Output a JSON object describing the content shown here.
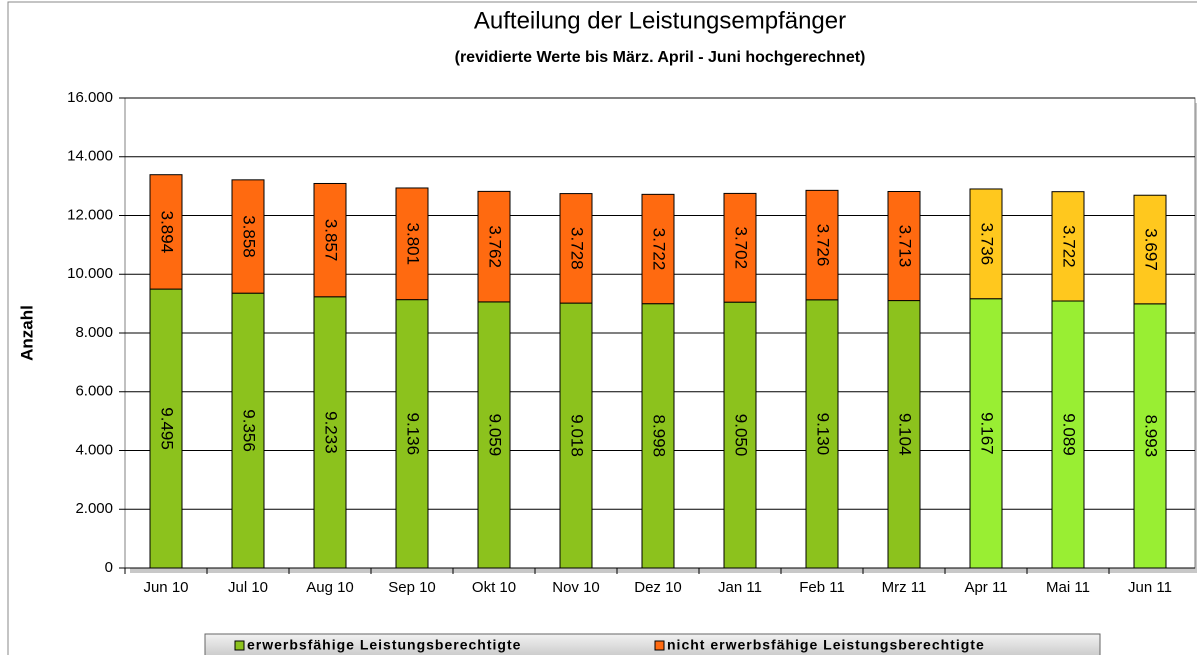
{
  "chart_data": {
    "type": "stacked_bar",
    "title": "Aufteilung der Leistungsempfänger",
    "subtitle": "(revidierte Werte bis März. April - Juni hochgerechnet)",
    "y_label": "Anzahl",
    "categories": [
      "Jun 10",
      "Jul 10",
      "Aug 10",
      "Sep 10",
      "Okt 10",
      "Nov 10",
      "Dez 10",
      "Jan 11",
      "Feb 11",
      "Mrz 11",
      "Apr 11",
      "Mai 11",
      "Jun 11"
    ],
    "series": [
      {
        "name": "erwerbsfähige Leistungsberechtigte",
        "color": "#8cc21d",
        "point_colors": [
          "#8cc21d",
          "#8cc21d",
          "#8cc21d",
          "#8cc21d",
          "#8cc21d",
          "#8cc21d",
          "#8cc21d",
          "#8cc21d",
          "#8cc21d",
          "#8cc21d",
          "#99ee33",
          "#99ee33",
          "#99ee33"
        ],
        "values": [
          9495,
          9356,
          9233,
          9136,
          9059,
          9018,
          8998,
          9050,
          9130,
          9104,
          9167,
          9089,
          8993
        ],
        "value_labels": [
          "9.495",
          "9.356",
          "9.233",
          "9.136",
          "9.059",
          "9.018",
          "8.998",
          "9.050",
          "9.130",
          "9.104",
          "9.167",
          "9.089",
          "8.993"
        ]
      },
      {
        "name": "nicht erwerbsfähige Leistungsberechtigte",
        "color": "#ff6a10",
        "point_colors": [
          "#ff6a10",
          "#ff6a10",
          "#ff6a10",
          "#ff6a10",
          "#ff6a10",
          "#ff6a10",
          "#ff6a10",
          "#ff6a10",
          "#ff6a10",
          "#ff6a10",
          "#ffc81e",
          "#ffc81e",
          "#ffc81e"
        ],
        "values": [
          3894,
          3858,
          3857,
          3801,
          3762,
          3728,
          3722,
          3702,
          3726,
          3713,
          3736,
          3722,
          3697
        ],
        "value_labels": [
          "3.894",
          "3.858",
          "3.857",
          "3.801",
          "3.762",
          "3.728",
          "3.722",
          "3.702",
          "3.726",
          "3.713",
          "3.736",
          "3.722",
          "3.697"
        ]
      }
    ],
    "ylim": [
      0,
      16000
    ],
    "yticks": [
      0,
      {
        "value": 2000,
        "label": "2.000"
      },
      {
        "value": 4000,
        "label": "4.000"
      },
      {
        "value": 6000,
        "label": "6.000"
      },
      {
        "value": 8000,
        "label": "8.000"
      },
      {
        "value": 10000,
        "label": "10.000"
      },
      {
        "value": 12000,
        "label": "12.000"
      },
      {
        "value": 14000,
        "label": "14.000"
      },
      {
        "value": 16000,
        "label": "16.000"
      }
    ],
    "grid": true,
    "legend": "bottom"
  }
}
